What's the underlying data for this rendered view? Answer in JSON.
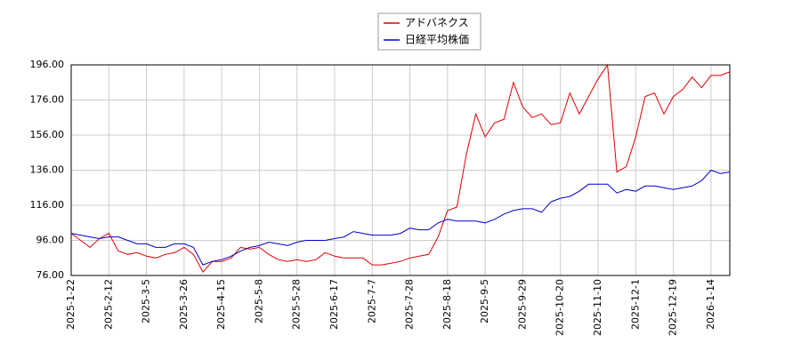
{
  "chart_data": {
    "type": "line",
    "categories": [
      "2025-1-22",
      null,
      null,
      null,
      "2025-2-12",
      null,
      null,
      null,
      "2025-3-5",
      null,
      null,
      null,
      "2025-3-26",
      null,
      null,
      null,
      "2025-4-15",
      null,
      null,
      null,
      "2025-5-8",
      null,
      null,
      null,
      "2025-5-28",
      null,
      null,
      null,
      "2025-6-17",
      null,
      null,
      null,
      "2025-7-7",
      null,
      null,
      null,
      "2025-7-28",
      null,
      null,
      null,
      "2025-8-18",
      null,
      null,
      null,
      "2025-9-5",
      null,
      null,
      null,
      "2025-9-29",
      null,
      null,
      null,
      "2025-10-20",
      null,
      null,
      null,
      "2025-11-10",
      null,
      null,
      null,
      "2025-12-1",
      null,
      null,
      null,
      "2025-12-19",
      null,
      null,
      null,
      "2026-1-14",
      null,
      null
    ],
    "series": [
      {
        "name": "アドバネクス",
        "color": "#dd0000",
        "values": [
          100,
          96,
          92,
          97,
          100,
          90,
          88,
          89,
          87,
          86,
          88,
          89,
          92,
          88,
          78,
          84,
          84,
          86,
          92,
          91,
          92,
          88,
          85,
          84,
          85,
          84,
          85,
          89,
          87,
          86,
          86,
          86,
          82,
          82,
          83,
          84,
          86,
          87,
          88,
          98,
          113,
          115,
          145,
          168,
          155,
          163,
          165,
          186,
          172,
          166,
          168,
          162,
          163,
          180,
          168,
          178,
          188,
          196,
          135,
          138,
          155,
          178,
          180,
          168,
          178,
          182,
          189,
          183,
          190,
          190,
          192
        ]
      },
      {
        "name": "日経平均株価",
        "color": "#0000cc",
        "values": [
          100,
          99,
          98,
          97,
          98,
          98,
          96,
          94,
          94,
          92,
          92,
          94,
          94,
          92,
          82,
          84,
          85,
          87,
          90,
          92,
          93,
          95,
          94,
          93,
          95,
          96,
          96,
          96,
          97,
          98,
          101,
          100,
          99,
          99,
          99,
          100,
          103,
          102,
          102,
          106,
          108,
          107,
          107,
          107,
          106,
          108,
          111,
          113,
          114,
          114,
          112,
          118,
          120,
          121,
          124,
          128,
          128,
          128,
          123,
          125,
          124,
          127,
          127,
          126,
          125,
          126,
          127,
          130,
          136,
          134,
          135
        ]
      }
    ],
    "ylim": [
      76,
      196
    ],
    "yticks": [
      {
        "value": 76,
        "label": "76.00"
      },
      {
        "value": 96,
        "label": "96.00"
      },
      {
        "value": 116,
        "label": "116.00"
      },
      {
        "value": 136,
        "label": "136.00"
      },
      {
        "value": 156,
        "label": "156.00"
      },
      {
        "value": 176,
        "label": "176.00"
      },
      {
        "value": 196,
        "label": "196.00"
      }
    ],
    "grid": true,
    "legend": "top"
  }
}
